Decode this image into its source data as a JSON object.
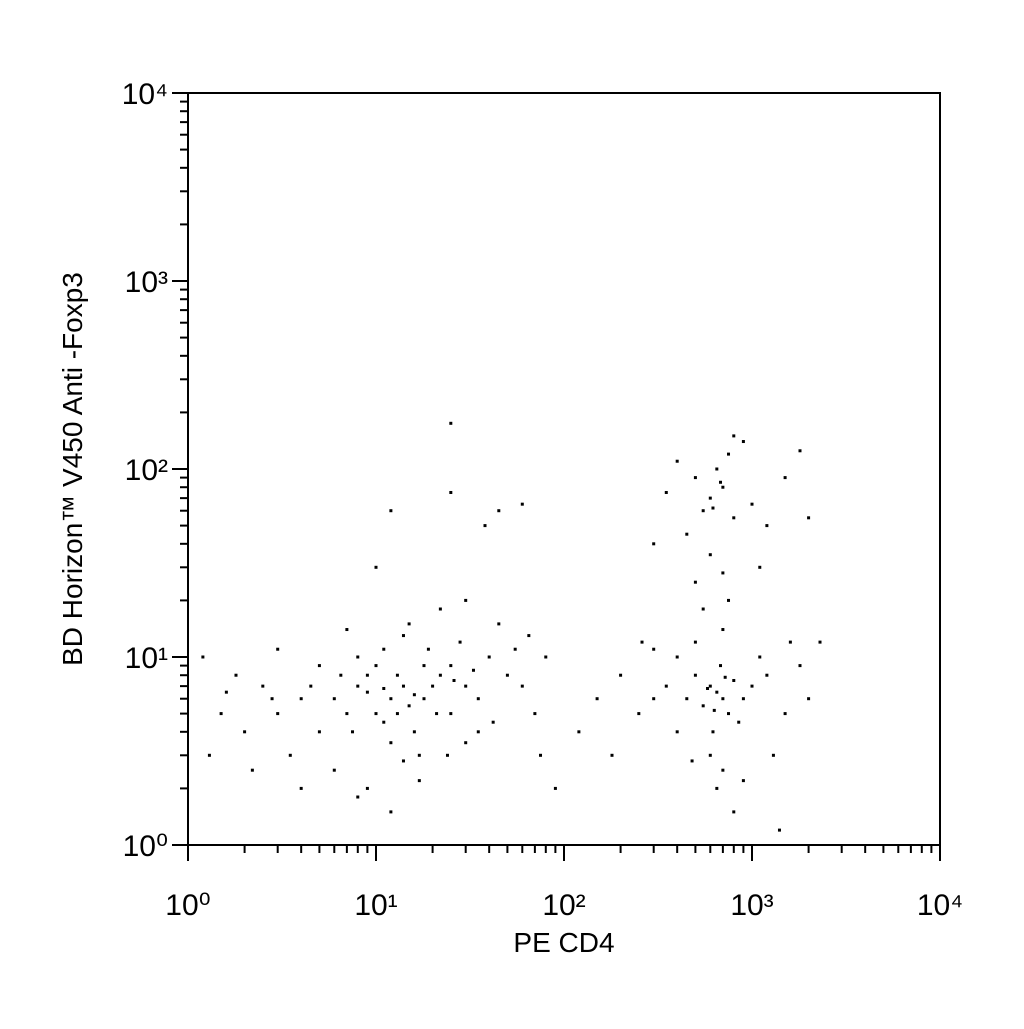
{
  "chart_data": {
    "type": "scatter",
    "x_label": "PE CD4",
    "y_label": "BD Horizon™ V450 Anti -Foxp3",
    "log_x": true,
    "log_y": true,
    "color": "#000000",
    "xlim": [
      1,
      10000
    ],
    "ylim": [
      1,
      10000
    ],
    "xticks": [
      {
        "value": 1,
        "label": "10⁰"
      },
      {
        "value": 10,
        "label": "10¹"
      },
      {
        "value": 100,
        "label": "10²"
      },
      {
        "value": 1000,
        "label": "10³"
      },
      {
        "value": 10000,
        "label": "10⁴"
      }
    ],
    "yticks": [
      {
        "value": 1,
        "label": "10⁰"
      },
      {
        "value": 10,
        "label": "10¹"
      },
      {
        "value": 100,
        "label": "10²"
      },
      {
        "value": 1000,
        "label": "10³"
      },
      {
        "value": 10000,
        "label": "10⁴"
      }
    ],
    "x": [
      12,
      10,
      14,
      9,
      11,
      15,
      8,
      13,
      18,
      20,
      7,
      6,
      16,
      10,
      12,
      22,
      25,
      30,
      5,
      4,
      3,
      2.5,
      2,
      1.5,
      1.3,
      1.8,
      3.5,
      6,
      9,
      14,
      17,
      25,
      35,
      40,
      28,
      19,
      11,
      8,
      5,
      45,
      30,
      50,
      60,
      70,
      35,
      24,
      12,
      8,
      4,
      2.2,
      1.2,
      3,
      7,
      15,
      22,
      10,
      25,
      25,
      45,
      12,
      60,
      38,
      14,
      9,
      13,
      11,
      16,
      7.5,
      18,
      21,
      26,
      33,
      6.5,
      4.5,
      2.8,
      1.6,
      17,
      30,
      42,
      55,
      65,
      80,
      75,
      90,
      650,
      600,
      700,
      550,
      800,
      500,
      750,
      620,
      680,
      450,
      900,
      1000,
      1200,
      1500,
      400,
      350,
      300,
      250,
      200,
      180,
      150,
      120,
      600,
      700,
      650,
      800,
      900,
      1300,
      1800,
      2000,
      1600,
      500,
      700,
      400,
      550,
      750,
      300,
      850,
      720,
      580,
      630,
      1100,
      2300,
      260,
      480,
      1400,
      600,
      550,
      700,
      500,
      650,
      800,
      450,
      750,
      900,
      400,
      350,
      1000,
      1200,
      1500,
      600,
      700,
      500,
      800,
      1800,
      2000,
      300,
      1100,
      620,
      680
    ],
    "values": [
      6,
      5,
      7,
      6.5,
      4.5,
      5.5,
      7,
      8,
      6,
      7,
      5,
      6,
      4,
      9,
      3.5,
      8,
      9,
      7,
      4,
      6,
      5,
      7,
      4,
      5,
      3,
      8,
      3,
      2.5,
      2,
      2.8,
      3,
      5,
      6,
      10,
      12,
      11,
      11,
      10,
      9,
      15,
      20,
      8,
      7,
      5,
      4,
      3,
      1.5,
      1.8,
      2,
      2.5,
      10,
      11,
      14,
      15,
      18,
      30,
      175,
      75,
      60,
      60,
      65,
      50,
      13,
      8,
      5,
      6.8,
      6.3,
      4,
      9,
      5,
      7.5,
      8.5,
      8,
      7,
      6,
      6.5,
      2.2,
      3.5,
      4.5,
      11,
      13,
      10,
      3,
      2,
      6.5,
      7,
      6,
      5.5,
      7.5,
      8,
      5,
      4,
      9,
      6,
      6,
      7,
      8,
      5,
      4,
      7,
      6,
      5,
      8,
      3,
      6,
      4,
      3,
      2.5,
      2,
      1.5,
      2.2,
      3,
      9,
      6,
      12,
      12,
      14,
      10,
      18,
      20,
      11,
      4.5,
      7.8,
      6.8,
      5.2,
      10,
      12,
      12,
      2.8,
      1.2,
      70,
      60,
      80,
      90,
      100,
      55,
      45,
      120,
      140,
      110,
      75,
      65,
      50,
      90,
      35,
      28,
      25,
      150,
      125,
      55,
      40,
      30,
      62,
      85
    ]
  }
}
